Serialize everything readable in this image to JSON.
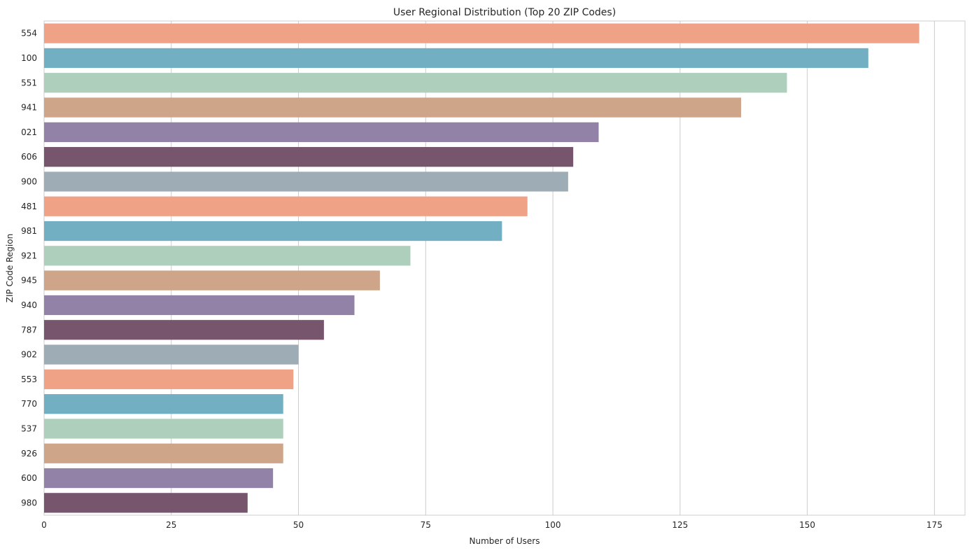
{
  "chart_data": {
    "type": "bar",
    "orientation": "horizontal",
    "title": "User Regional Distribution (Top 20 ZIP Codes)",
    "xlabel": "Number of Users",
    "ylabel": "ZIP Code Region",
    "xlim": [
      0,
      181
    ],
    "xticks": [
      0,
      25,
      50,
      75,
      100,
      125,
      150,
      175
    ],
    "grid": true,
    "categories": [
      "554",
      "100",
      "551",
      "941",
      "021",
      "606",
      "900",
      "481",
      "981",
      "921",
      "945",
      "940",
      "787",
      "902",
      "553",
      "770",
      "537",
      "926",
      "600",
      "980"
    ],
    "values": [
      172,
      162,
      146,
      137,
      109,
      104,
      103,
      95,
      90,
      72,
      66,
      61,
      55,
      50,
      49,
      47,
      47,
      47,
      45,
      40
    ],
    "palette": [
      "#F0A287",
      "#73AFC2",
      "#ADCFBB",
      "#CEA588",
      "#9382A7",
      "#77566D",
      "#9EACB5"
    ]
  }
}
